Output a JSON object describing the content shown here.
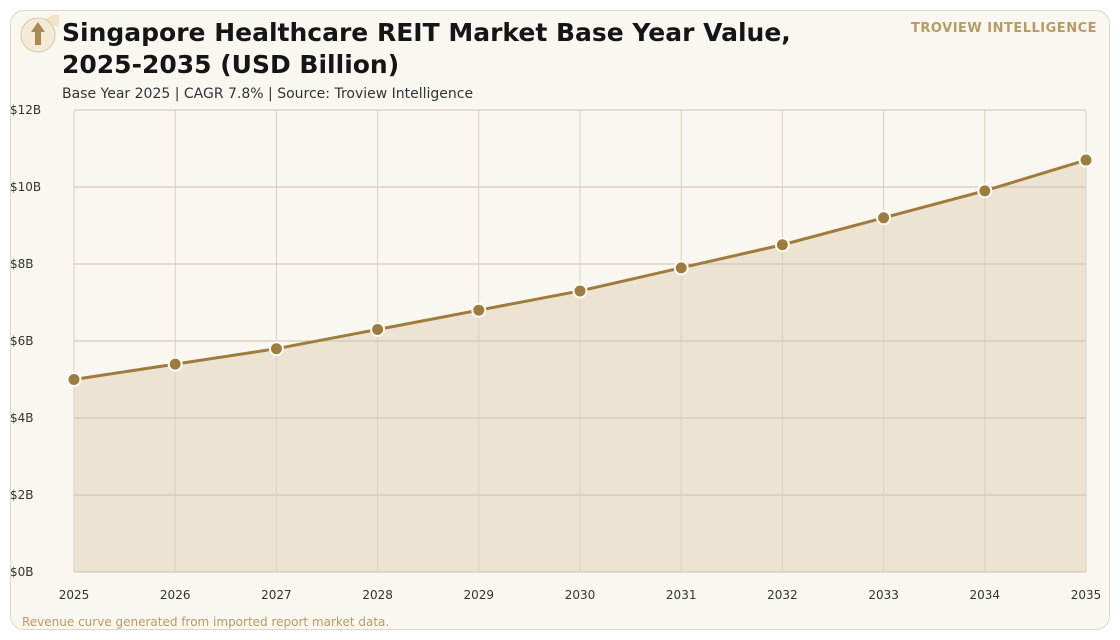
{
  "header": {
    "title_line1": "Singapore Healthcare REIT Market Base Year Value,",
    "title_line2": "2025-2035 (USD Billion)",
    "subtitle": "Base Year 2025 | CAGR 7.8% | Source: Troview Intelligence",
    "brand": "TROVIEW INTELLIGENCE"
  },
  "footnote": "Revenue curve generated from imported report market data.",
  "colors": {
    "accent": "#a07c3c",
    "fill": "#ece3d2",
    "grid": "#c9c1b1",
    "background": "#faf7f0"
  },
  "chart_data": {
    "type": "area",
    "title": "Singapore Healthcare REIT Market Base Year Value, 2025-2035 (USD Billion)",
    "x": [
      "2025",
      "2026",
      "2027",
      "2028",
      "2029",
      "2030",
      "2031",
      "2032",
      "2033",
      "2034",
      "2035"
    ],
    "series": [
      {
        "values": [
          5.0,
          5.4,
          5.8,
          6.3,
          6.8,
          7.3,
          7.9,
          8.5,
          9.2,
          9.9,
          10.7
        ]
      }
    ],
    "ylim": [
      0,
      12
    ],
    "yticks": [
      0,
      2,
      4,
      6,
      8,
      10,
      12
    ],
    "ytick_labels": [
      "$0B",
      "$2B",
      "$4B",
      "$6B",
      "$8B",
      "$10B",
      "$12B"
    ],
    "grid": true,
    "legend": "none"
  }
}
